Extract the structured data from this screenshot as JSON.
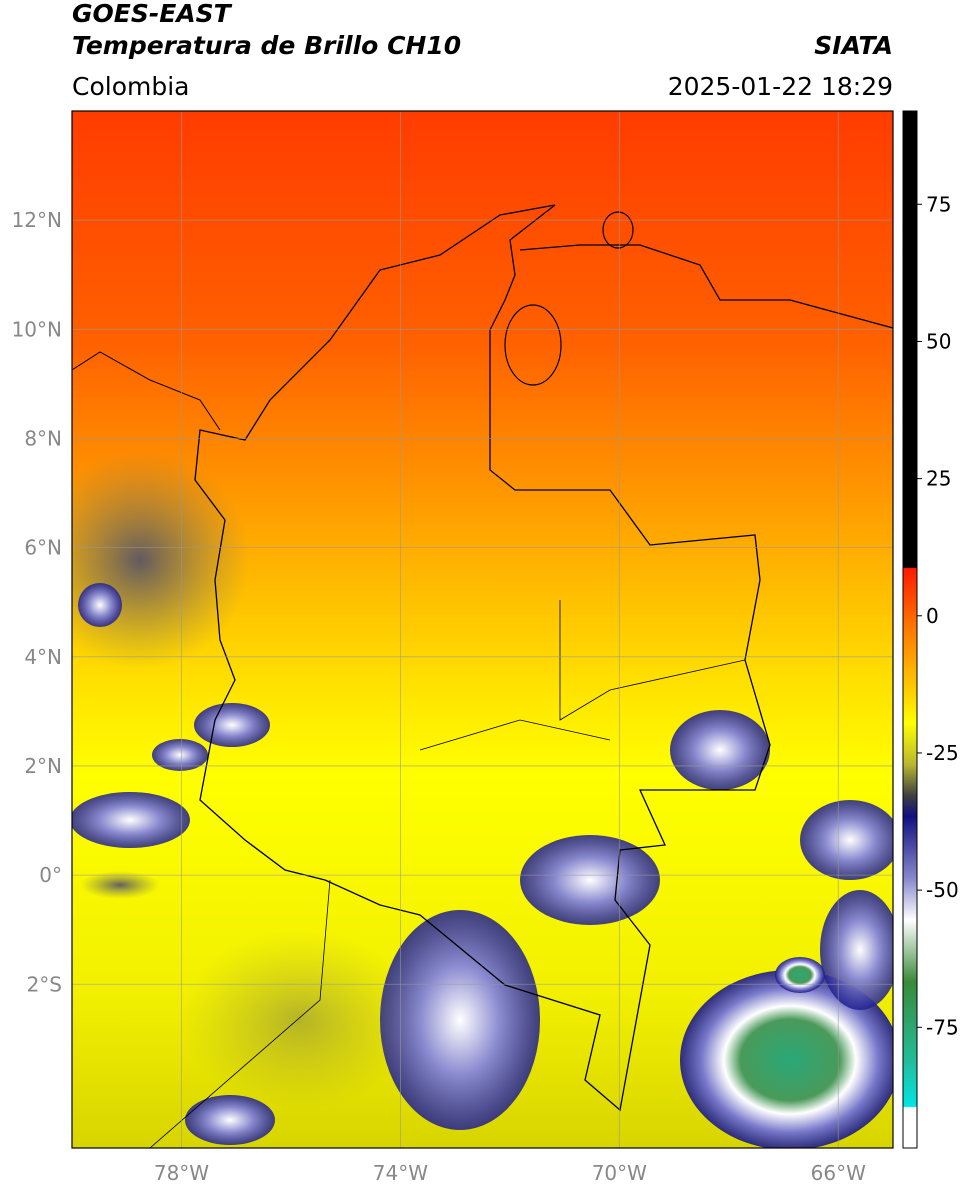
{
  "header": {
    "title": "GOES-EAST",
    "subtitle": "Temperatura de Brillo CH10",
    "region": "Colombia",
    "source": "SIATA",
    "datetime": "2025-01-22 18:29"
  },
  "map": {
    "xlim": [
      -80,
      -65
    ],
    "ylim": [
      -5,
      14
    ],
    "xticks": [
      {
        "value": -78,
        "label": "78°W"
      },
      {
        "value": -74,
        "label": "74°W"
      },
      {
        "value": -70,
        "label": "70°W"
      },
      {
        "value": -66,
        "label": "66°W"
      }
    ],
    "yticks": [
      {
        "value": 12,
        "label": "12°N"
      },
      {
        "value": 10,
        "label": "10°N"
      },
      {
        "value": 8,
        "label": "8°N"
      },
      {
        "value": 6,
        "label": "6°N"
      },
      {
        "value": 4,
        "label": "4°N"
      },
      {
        "value": 2,
        "label": "2°N"
      },
      {
        "value": 0,
        "label": "0°"
      },
      {
        "value": -2,
        "label": "2°S"
      }
    ],
    "grid": true
  },
  "colorbar": {
    "lim": [
      -97,
      92
    ],
    "ticks": [
      75,
      50,
      25,
      0,
      -25,
      -50,
      -75
    ]
  }
}
